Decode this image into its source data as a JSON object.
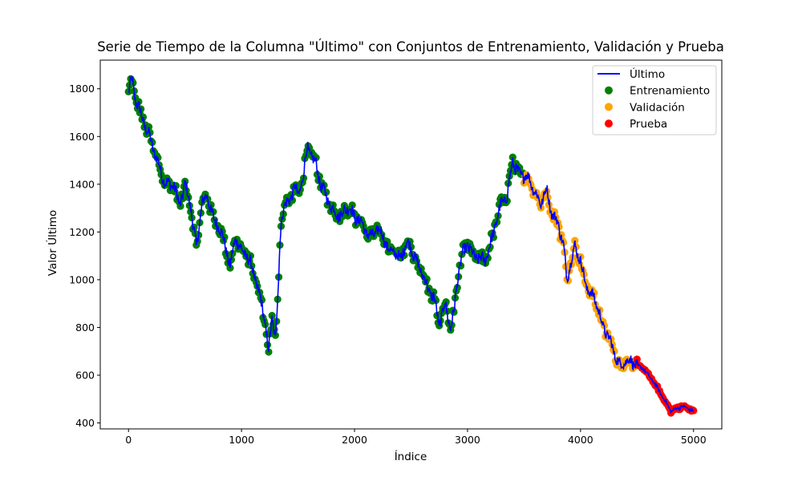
{
  "chart_data": {
    "type": "line",
    "title": "Serie de Tiempo de la Columna \"Último\" con Conjuntos de Entrenamiento, Validación y Prueba",
    "xlabel": "Índice",
    "ylabel": "Valor Último",
    "xlim": [
      -250,
      5250
    ],
    "ylim": [
      375,
      1920
    ],
    "xticks": [
      0,
      1000,
      2000,
      3000,
      4000,
      5000
    ],
    "yticks": [
      400,
      600,
      800,
      1000,
      1200,
      1400,
      1600,
      1800
    ],
    "grid": false,
    "legend_position": "top-right",
    "series": [
      {
        "name": "Último",
        "kind": "line",
        "color": "#0000ff"
      },
      {
        "name": "Entrenamiento",
        "kind": "scatter",
        "color": "#008000",
        "x_range": [
          0,
          3500
        ]
      },
      {
        "name": "Validación",
        "kind": "scatter",
        "color": "#ffa500",
        "x_range": [
          3500,
          4500
        ]
      },
      {
        "name": "Prueba",
        "kind": "scatter",
        "color": "#ff0000",
        "x_range": [
          4500,
          5000
        ]
      }
    ],
    "keypoints": {
      "x": [
        0,
        30,
        60,
        120,
        200,
        280,
        330,
        400,
        450,
        500,
        550,
        600,
        650,
        700,
        760,
        800,
        850,
        900,
        950,
        1000,
        1050,
        1100,
        1150,
        1200,
        1240,
        1270,
        1300,
        1330,
        1340,
        1360,
        1380,
        1420,
        1470,
        1500,
        1550,
        1580,
        1620,
        1660,
        1700,
        1750,
        1800,
        1850,
        1900,
        1950,
        2000,
        2050,
        2100,
        2150,
        2200,
        2250,
        2300,
        2350,
        2400,
        2450,
        2500,
        2550,
        2600,
        2650,
        2700,
        2750,
        2800,
        2850,
        2880,
        2910,
        2950,
        3000,
        3050,
        3100,
        3150,
        3200,
        3250,
        3300,
        3350,
        3400,
        3450,
        3500,
        3550,
        3600,
        3650,
        3700,
        3750,
        3800,
        3850,
        3880,
        3900,
        3950,
        4000,
        4050,
        4100,
        4150,
        4200,
        4250,
        4300,
        4350,
        4400,
        4450,
        4500,
        4550,
        4600,
        4650,
        4700,
        4750,
        4800,
        4850,
        4900,
        4950,
        5000
      ],
      "y": [
        1780,
        1840,
        1760,
        1680,
        1580,
        1460,
        1400,
        1400,
        1310,
        1400,
        1310,
        1130,
        1320,
        1350,
        1240,
        1230,
        1150,
        1060,
        1180,
        1120,
        1100,
        1040,
        950,
        850,
        700,
        840,
        760,
        1000,
        1160,
        1280,
        1320,
        1320,
        1400,
        1340,
        1450,
        1550,
        1520,
        1480,
        1400,
        1350,
        1300,
        1270,
        1280,
        1310,
        1260,
        1250,
        1200,
        1180,
        1210,
        1190,
        1120,
        1120,
        1080,
        1150,
        1140,
        1070,
        1030,
        960,
        930,
        810,
        900,
        800,
        860,
        1000,
        1100,
        1150,
        1100,
        1090,
        1080,
        1140,
        1240,
        1320,
        1350,
        1500,
        1440,
        1440,
        1420,
        1360,
        1320,
        1380,
        1270,
        1240,
        1140,
        1000,
        1050,
        1140,
        1080,
        970,
        940,
        890,
        800,
        760,
        690,
        640,
        660,
        660,
        640,
        630,
        600,
        570,
        530,
        490,
        450,
        460,
        470,
        460,
        450
      ]
    }
  }
}
